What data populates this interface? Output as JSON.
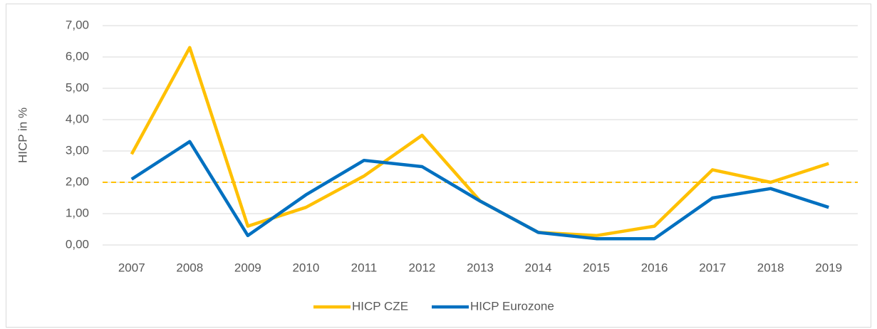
{
  "chart_data": {
    "type": "line",
    "y_label": "HICP in %",
    "categories": [
      "2007",
      "2008",
      "2009",
      "2010",
      "2011",
      "2012",
      "2013",
      "2014",
      "2015",
      "2016",
      "2017",
      "2018",
      "2019"
    ],
    "series": [
      {
        "name": "HICP CZE",
        "color": "#ffc000",
        "values": [
          2.9,
          6.3,
          0.6,
          1.2,
          2.2,
          3.5,
          1.4,
          0.4,
          0.3,
          0.6,
          2.4,
          2.0,
          2.6
        ]
      },
      {
        "name": "HICP Eurozone",
        "color": "#0070c0",
        "values": [
          2.1,
          3.3,
          0.3,
          1.6,
          2.7,
          2.5,
          1.4,
          0.4,
          0.2,
          0.2,
          1.5,
          1.8,
          1.2
        ]
      }
    ],
    "reference_line": {
      "value": 2,
      "color": "#ffc000"
    },
    "ylim": [
      0,
      7
    ],
    "yticks": [
      {
        "value": 0,
        "label": "0,00"
      },
      {
        "value": 1,
        "label": "1,00"
      },
      {
        "value": 2,
        "label": "2,00"
      },
      {
        "value": 3,
        "label": "3,00"
      },
      {
        "value": 4,
        "label": "4,00"
      },
      {
        "value": 5,
        "label": "5,00"
      },
      {
        "value": 6,
        "label": "6,00"
      },
      {
        "value": 7,
        "label": "7,00"
      }
    ],
    "grid": true,
    "legend": "bottom"
  }
}
